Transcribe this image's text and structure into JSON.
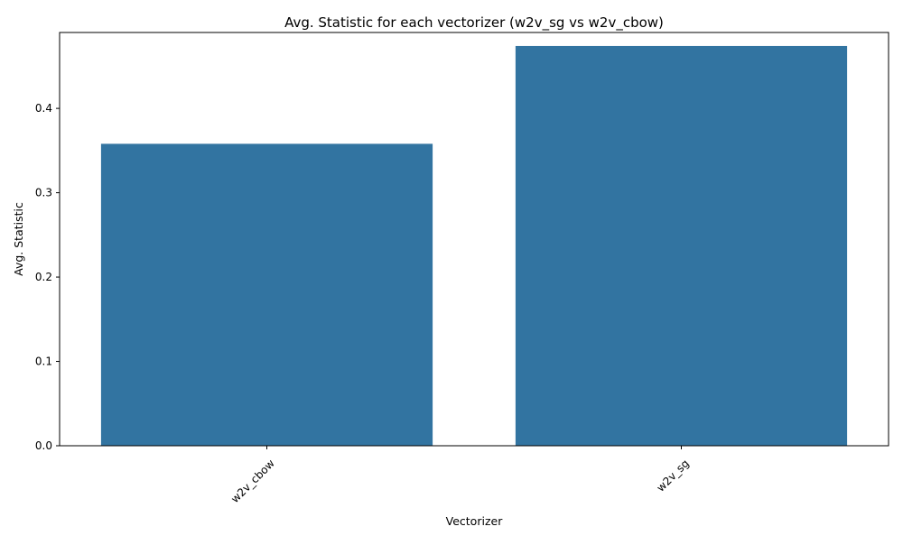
{
  "chart_data": {
    "type": "bar",
    "title": "Avg. Statistic for each vectorizer (w2v_sg vs w2v_cbow)",
    "xlabel": "Vectorizer",
    "ylabel": "Avg. Statistic",
    "categories": [
      "w2v_cbow",
      "w2v_sg"
    ],
    "values": [
      0.358,
      0.474
    ],
    "ylim": [
      0,
      0.49
    ],
    "yticks": [
      0.0,
      0.1,
      0.2,
      0.3,
      0.4
    ],
    "ytick_labels": [
      "0.0",
      "0.1",
      "0.2",
      "0.3",
      "0.4"
    ],
    "bar_color": "#3274a1",
    "grid": false,
    "legend": "none"
  }
}
